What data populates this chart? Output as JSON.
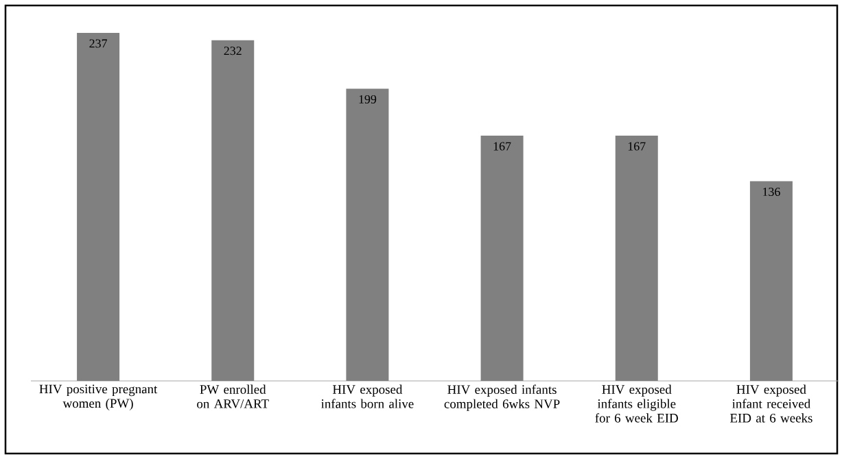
{
  "chart_data": {
    "type": "bar",
    "categories": [
      "HIV positive pregnant women (PW)",
      "PW enrolled on ARV/ART",
      "HIV exposed infants born alive",
      "HIV exposed infants completed 6wks NVP",
      "HIV exposed infants eligible for 6 week EID",
      "HIV exposed infant received EID at 6 weeks"
    ],
    "values": [
      237,
      232,
      199,
      167,
      167,
      136
    ],
    "color": "#808080",
    "data_labels": true
  }
}
